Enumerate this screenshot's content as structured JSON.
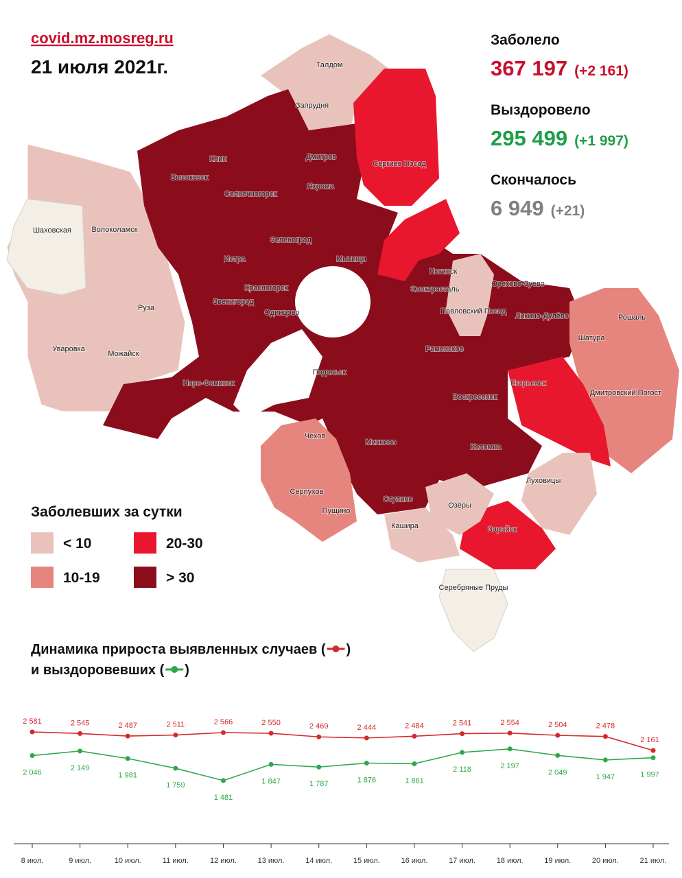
{
  "header": {
    "site": "covid.mz.mosreg.ru",
    "date": "21 июля 2021г."
  },
  "stats": [
    {
      "label": "Заболело",
      "value": "367 197",
      "delta": "(+2 161)",
      "color": "#c8102e"
    },
    {
      "label": "Выздоровело",
      "value": "295 499",
      "delta": "(+1 997)",
      "color": "#1e9e48"
    },
    {
      "label": "Скончалось",
      "value": "6 949",
      "delta": "(+21)",
      "color": "#808080"
    }
  ],
  "legend": {
    "title": "Заболевших за сутки",
    "items": [
      {
        "label": "< 10",
        "color": "#e9c3bb"
      },
      {
        "label": "20-30",
        "color": "#e8172d"
      },
      {
        "label": "10-19",
        "color": "#e5857e"
      },
      {
        "label": "> 30",
        "color": "#8b0d1c"
      }
    ]
  },
  "map": {
    "places": [
      "Талдом",
      "Запрудня",
      "Клин",
      "Дмитров",
      "Сергиев Посад",
      "Высоковск",
      "Яхрома",
      "Солнечногорск",
      "Шаховская",
      "Волоколамск",
      "Зеленоград",
      "Истра",
      "Мытищи",
      "Ногинск",
      "Электросталь",
      "Орехово-Зуево",
      "Красногорск",
      "Звенигород",
      "Павловский Посад",
      "Ликино-Дулёво",
      "Рошаль",
      "Одинцово",
      "Руза",
      "Шатура",
      "Раменское",
      "Уваровка",
      "Можайск",
      "Наро-Фоминск",
      "Подольск",
      "Егорьевск",
      "Дмитровский Погост",
      "Воскресенск",
      "Чехов",
      "Михнево",
      "Коломна",
      "Луховицы",
      "Серпухов",
      "Пущино",
      "Ступино",
      "Озёры",
      "Кашира",
      "Зарайск",
      "Серебряные Пруды"
    ]
  },
  "chart_data": {
    "type": "line",
    "title_parts": [
      "Динамика прироста выявленных случаев (",
      ")",
      "и выздоровевших (",
      ")"
    ],
    "categories": [
      "8 июл.",
      "9 июл.",
      "10 июл.",
      "11 июл.",
      "12 июл.",
      "13 июл.",
      "14 июл.",
      "15 июл.",
      "16 июл.",
      "17 июл.",
      "18 июл.",
      "19 июл.",
      "20 июл.",
      "21 июл."
    ],
    "ylim": [
      1000,
      3000
    ],
    "series": [
      {
        "color": "#d42a2a",
        "values": [
          2581,
          2545,
          2487,
          2511,
          2566,
          2550,
          2469,
          2444,
          2484,
          2541,
          2554,
          2504,
          2478,
          2161
        ],
        "value_labels": [
          "2 581",
          "2 545",
          "2 487",
          "2 511",
          "2 566",
          "2 550",
          "2 469",
          "2 444",
          "2 484",
          "2 541",
          "2 554",
          "2 504",
          "2 478",
          "2 161"
        ]
      },
      {
        "color": "#2ea84a",
        "values": [
          2046,
          2149,
          1981,
          1759,
          1481,
          1847,
          1787,
          1876,
          1861,
          2118,
          2197,
          2049,
          1947,
          1997
        ],
        "value_labels": [
          "2 046",
          "2 149",
          "1 981",
          "1 759",
          "1 481",
          "1 847",
          "1 787",
          "1 876",
          "1 861",
          "2 118",
          "2 197",
          "2 049",
          "1 947",
          "1 997"
        ]
      }
    ]
  }
}
